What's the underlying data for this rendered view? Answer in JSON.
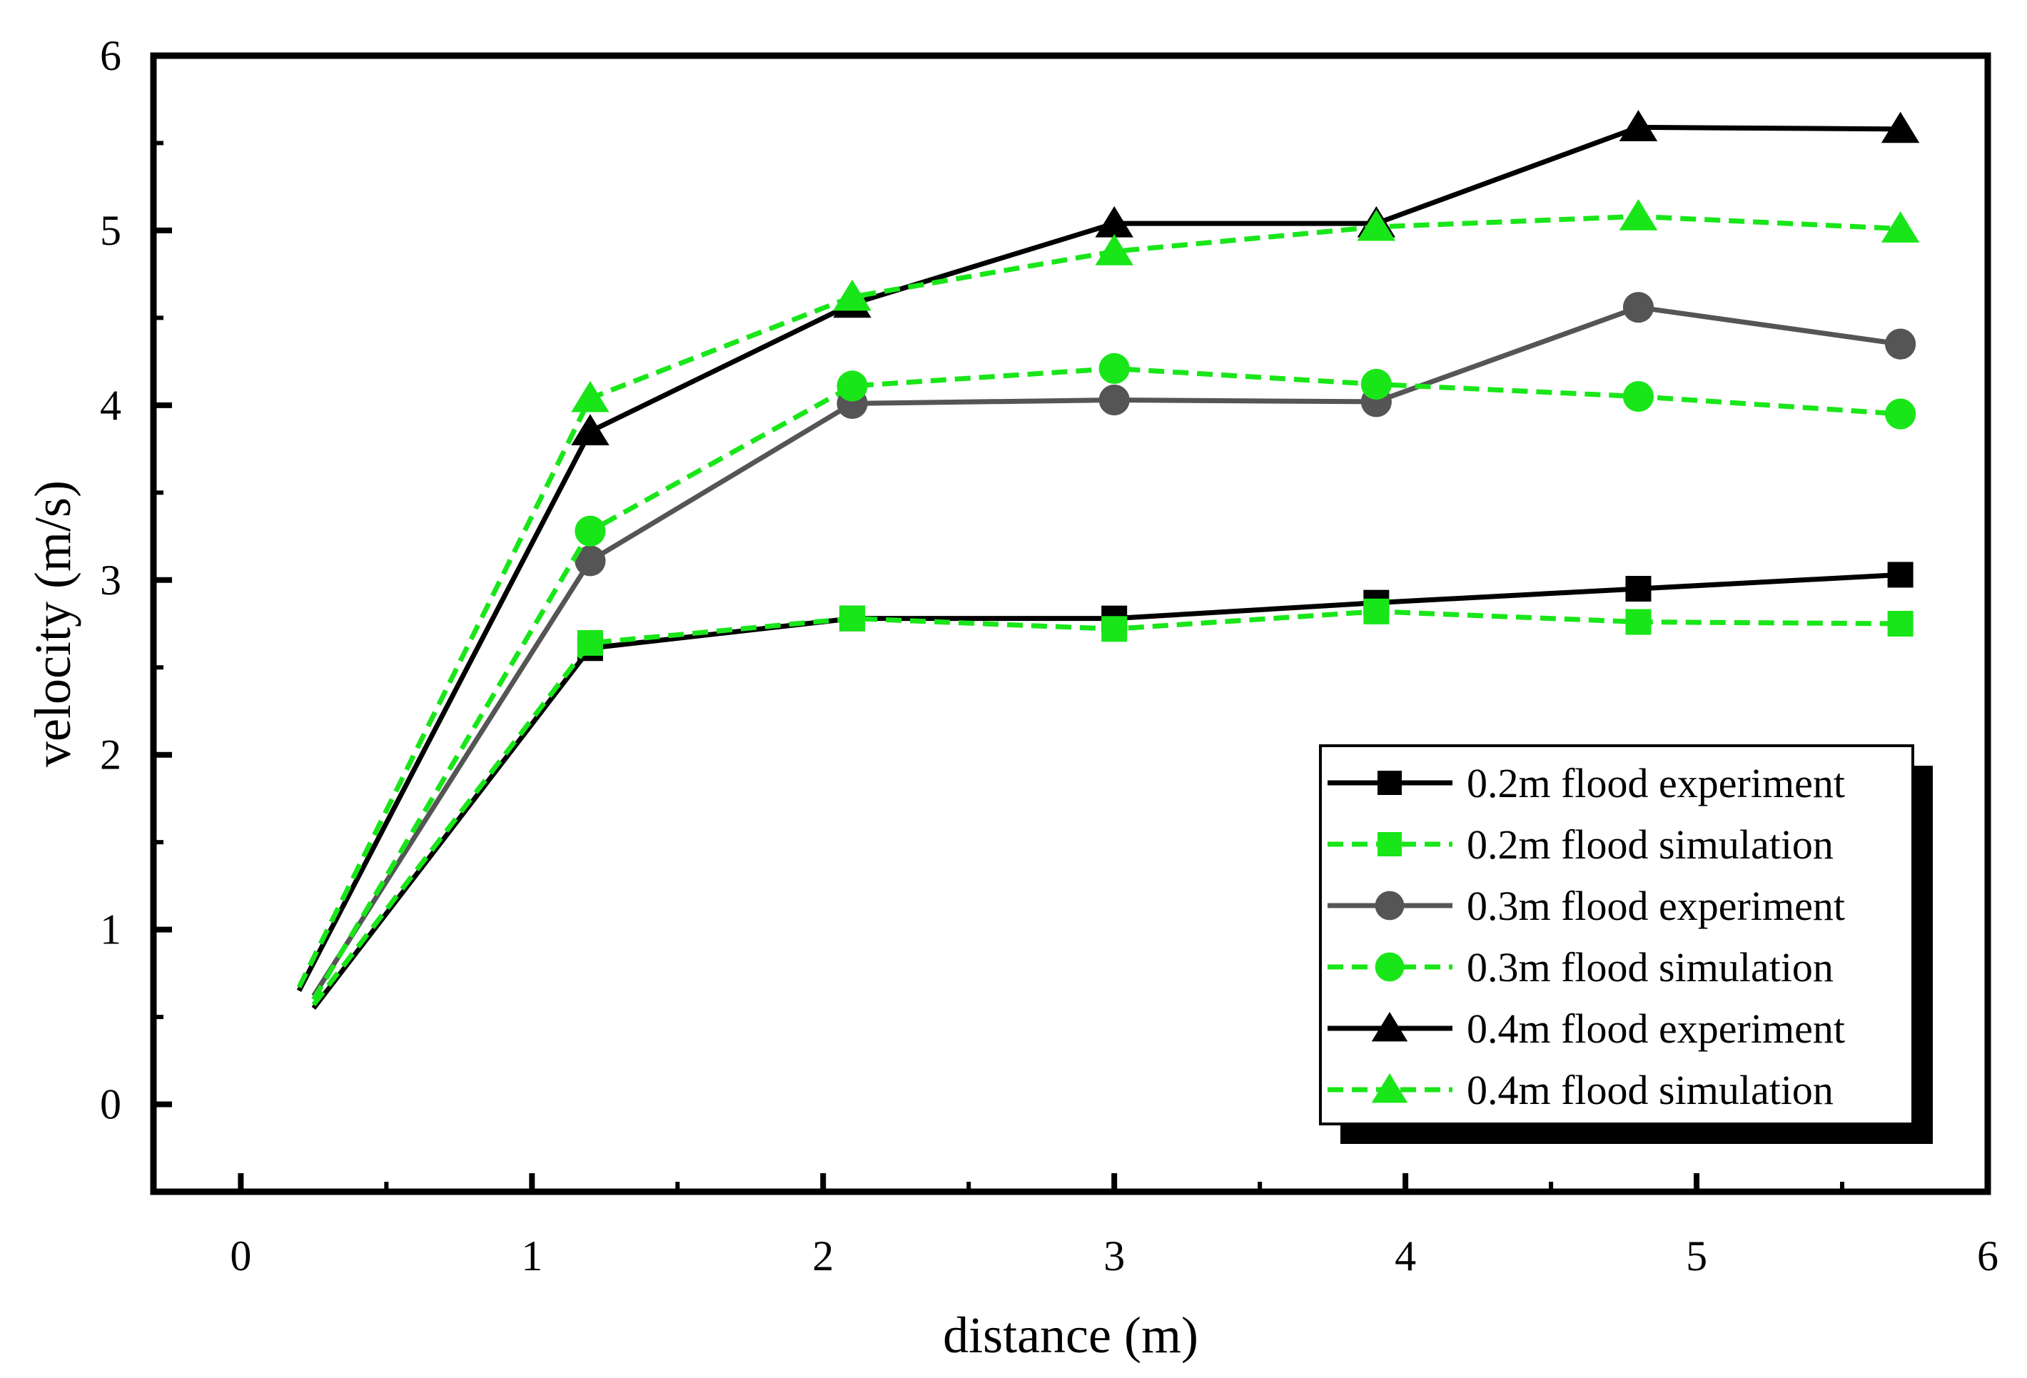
{
  "chart_data": {
    "type": "line",
    "title": "",
    "xlabel": "distance (m)",
    "ylabel": "velocity (m/s)",
    "xlim": [
      -0.3,
      6
    ],
    "ylim": [
      -0.5,
      6
    ],
    "xticks": [
      0,
      1,
      2,
      3,
      4,
      5,
      6
    ],
    "yticks": [
      0,
      1,
      2,
      3,
      4,
      5,
      6
    ],
    "legend_position": "bottom-right",
    "series": [
      {
        "name": "0.2m flood experiment",
        "marker": "square",
        "color": "#000000",
        "dash": "solid",
        "x": [
          0.25,
          1.2,
          2.1,
          3.0,
          3.9,
          4.8,
          5.7
        ],
        "y": [
          0.55,
          2.61,
          2.78,
          2.78,
          2.87,
          2.95,
          3.03
        ]
      },
      {
        "name": "0.2m flood simulation",
        "marker": "square",
        "color": "#19e619",
        "dash": "dashed",
        "x": [
          0.25,
          1.2,
          2.1,
          3.0,
          3.9,
          4.8,
          5.7
        ],
        "y": [
          0.57,
          2.64,
          2.78,
          2.72,
          2.82,
          2.76,
          2.75
        ]
      },
      {
        "name": "0.3m flood experiment",
        "marker": "circle",
        "color": "#555555",
        "dash": "solid",
        "x": [
          0.25,
          1.2,
          2.1,
          3.0,
          3.9,
          4.8,
          5.7
        ],
        "y": [
          0.62,
          3.11,
          4.01,
          4.03,
          4.02,
          4.56,
          4.35
        ]
      },
      {
        "name": "0.3m flood simulation",
        "marker": "circle",
        "color": "#19e619",
        "dash": "dashed",
        "x": [
          0.25,
          1.2,
          2.1,
          3.0,
          3.9,
          4.8,
          5.7
        ],
        "y": [
          0.6,
          3.28,
          4.11,
          4.21,
          4.12,
          4.05,
          3.95
        ]
      },
      {
        "name": "0.4m flood experiment",
        "marker": "triangle",
        "color": "#000000",
        "dash": "solid",
        "x": [
          0.2,
          1.2,
          2.1,
          3.0,
          3.9,
          4.8,
          5.7
        ],
        "y": [
          0.65,
          3.85,
          4.58,
          5.04,
          5.04,
          5.59,
          5.58
        ]
      },
      {
        "name": "0.4m flood simulation",
        "marker": "triangle",
        "color": "#19e619",
        "dash": "dashed",
        "x": [
          0.2,
          1.2,
          2.1,
          3.0,
          3.9,
          4.8,
          5.7
        ],
        "y": [
          0.67,
          4.04,
          4.62,
          4.88,
          5.02,
          5.08,
          5.01
        ]
      }
    ]
  }
}
